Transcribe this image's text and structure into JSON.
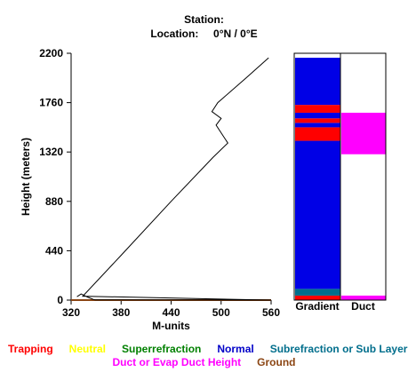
{
  "header": {
    "station_label": "Station:",
    "location_label": "Location:",
    "lat": "0°N /",
    "lon": "0°E"
  },
  "chart_data": {
    "type": "line",
    "title": "",
    "xlabel": "M-units",
    "ylabel": "Height (meters)",
    "xlim": [
      320,
      560
    ],
    "ylim": [
      0,
      2200
    ],
    "x_ticks": [
      320,
      380,
      440,
      500,
      560
    ],
    "y_ticks": [
      0,
      440,
      880,
      1320,
      1760,
      2200
    ],
    "grid": false,
    "series": [
      {
        "color": "#000000",
        "points": [
          [
            327,
            30
          ],
          [
            332,
            55
          ],
          [
            340,
            25
          ],
          [
            347,
            5
          ],
          [
            349,
            2
          ],
          [
            560,
            0
          ],
          [
            334,
            35
          ],
          [
            380,
            400
          ],
          [
            440,
            880
          ],
          [
            490,
            1270
          ],
          [
            508,
            1400
          ],
          [
            494,
            1560
          ],
          [
            500,
            1620
          ],
          [
            489,
            1680
          ],
          [
            496,
            1760
          ],
          [
            530,
            1980
          ],
          [
            557,
            2160
          ]
        ]
      }
    ],
    "baseline": {
      "height": 0,
      "color": "#8B4513"
    },
    "profile_columns": [
      {
        "label": "Gradient",
        "bands": [
          {
            "from": 0,
            "to": 40,
            "type": "Trapping",
            "color": "#FF0000"
          },
          {
            "from": 40,
            "to": 100,
            "type": "Subrefraction or Sub Layer",
            "color": "#006E8C"
          },
          {
            "from": 100,
            "to": 1420,
            "type": "Normal",
            "color": "#0000E6"
          },
          {
            "from": 1420,
            "to": 1540,
            "type": "Trapping",
            "color": "#FF0000"
          },
          {
            "from": 1540,
            "to": 1580,
            "type": "Normal",
            "color": "#0000E6"
          },
          {
            "from": 1580,
            "to": 1620,
            "type": "Trapping",
            "color": "#FF0000"
          },
          {
            "from": 1620,
            "to": 1670,
            "type": "Normal",
            "color": "#0000E6"
          },
          {
            "from": 1670,
            "to": 1740,
            "type": "Trapping",
            "color": "#FF0000"
          },
          {
            "from": 1740,
            "to": 2160,
            "type": "Normal",
            "color": "#0000E6"
          }
        ]
      },
      {
        "label": "Duct",
        "bands": [
          {
            "from": 0,
            "to": 40,
            "type": "Duct or Evap Duct Height",
            "color": "#FF00FF"
          },
          {
            "from": 1300,
            "to": 1670,
            "type": "Duct or Evap Duct Height",
            "color": "#FF00FF"
          }
        ]
      }
    ],
    "legend": [
      {
        "label": "Trapping",
        "color": "#FF0000"
      },
      {
        "label": "Neutral",
        "color": "#FFFF00"
      },
      {
        "label": "Superrefraction",
        "color": "#008000"
      },
      {
        "label": "Normal",
        "color": "#0000C8"
      },
      {
        "label": "Subrefraction or Sub Layer",
        "color": "#006E8C"
      },
      {
        "label": "Duct or Evap Duct Height",
        "color": "#FF00FF"
      },
      {
        "label": "Ground",
        "color": "#8B4513"
      }
    ]
  }
}
